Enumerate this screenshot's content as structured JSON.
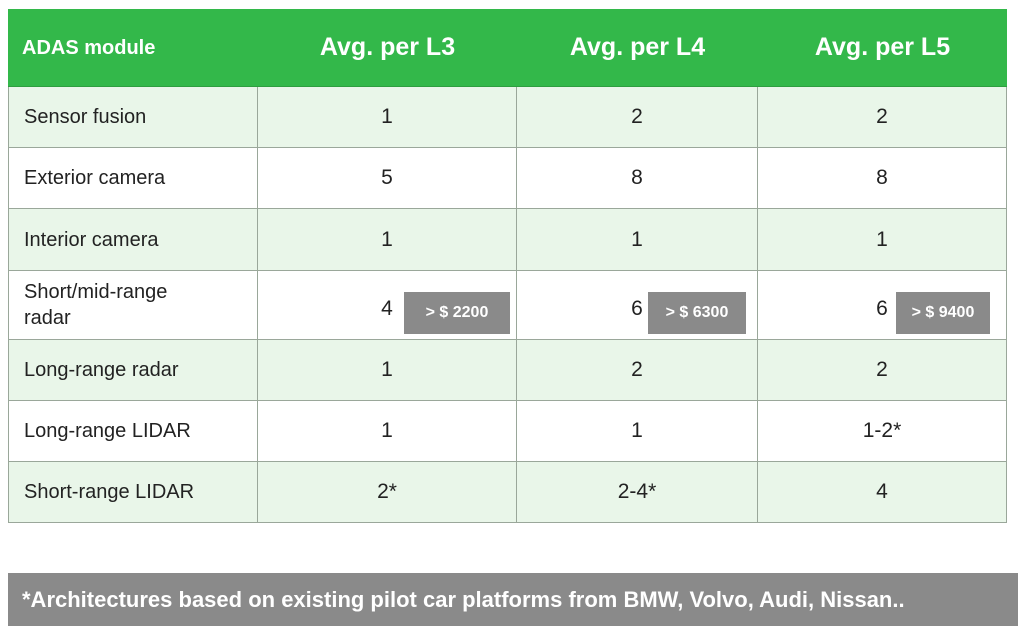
{
  "header": {
    "col0": "ADAS module",
    "col1": "Avg. per L3",
    "col2": "Avg. per L4",
    "col3": "Avg. per L5"
  },
  "rows": [
    {
      "module": "Sensor fusion",
      "l3": "1",
      "l4": "2",
      "l5": "2"
    },
    {
      "module": "Exterior camera",
      "l3": "5",
      "l4": "8",
      "l5": "8"
    },
    {
      "module": "Interior camera",
      "l3": "1",
      "l4": "1",
      "l5": "1"
    },
    {
      "module": "Short/mid-range radar",
      "l3": "4",
      "l4": "6",
      "l5": "6"
    },
    {
      "module": "Long-range radar",
      "l3": "1",
      "l4": "2",
      "l5": "2"
    },
    {
      "module": "Long-range LIDAR",
      "l3": "1",
      "l4": "1",
      "l5": "1-2*"
    },
    {
      "module": "Short-range LIDAR",
      "l3": "2*",
      "l4": "2-4*",
      "l5": "4"
    }
  ],
  "costs": {
    "l3": "> $ 2200",
    "l4": "> $ 6300",
    "l5": "> $ 9400"
  },
  "footnote": "*Architectures based on existing pilot car platforms from BMW, Volvo, Audi, Nissan..",
  "colors": {
    "header_green": "#33b84a",
    "row_tint": "#e9f6e9",
    "badge_gray": "#8a8a8a"
  }
}
